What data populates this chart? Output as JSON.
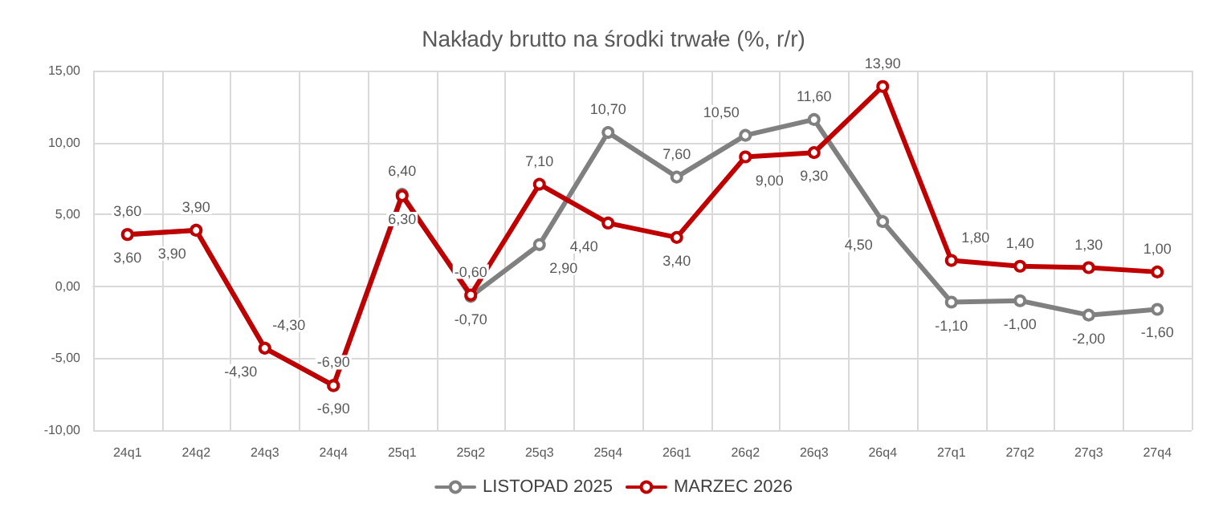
{
  "chart_data": {
    "type": "line",
    "title": "Nakłady brutto na środki trwałe (%, r/r)",
    "categories": [
      "24q1",
      "24q2",
      "24q3",
      "24q4",
      "25q1",
      "25q2",
      "25q3",
      "25q4",
      "26q1",
      "26q2",
      "26q3",
      "26q4",
      "27q1",
      "27q2",
      "27q3",
      "27q4"
    ],
    "series": [
      {
        "name": "LISTOPAD 2025",
        "color": "#808080",
        "values": [
          3.6,
          3.9,
          -4.3,
          -6.9,
          6.4,
          -0.7,
          2.9,
          10.7,
          7.6,
          10.5,
          11.6,
          4.5,
          -1.1,
          -1.0,
          -2.0,
          -1.6
        ],
        "value_labels": [
          "3,60",
          "3,90",
          "-4,30",
          "-6,90",
          "6,40",
          "-0,70",
          "2,90",
          "10,70",
          "7,60",
          "10,50",
          "11,60",
          "4,50",
          "-1,10",
          "-1,00",
          "-2,00",
          "-1,60"
        ]
      },
      {
        "name": "MARZEC 2026",
        "color": "#c00000",
        "values": [
          3.6,
          3.9,
          -4.3,
          -6.9,
          6.3,
          -0.6,
          7.1,
          4.4,
          3.4,
          9.0,
          9.3,
          13.9,
          1.8,
          1.4,
          1.3,
          1.0
        ],
        "value_labels": [
          "3,60",
          "3,90",
          "-4,30",
          "-6,90",
          "6,30",
          "-0,60",
          "7,10",
          "4,40",
          "3,40",
          "9,00",
          "9,30",
          "13,90",
          "1,80",
          "1,40",
          "1,30",
          "1,00"
        ]
      }
    ],
    "ylim": [
      -10,
      15
    ],
    "yticks": [
      {
        "value": -10,
        "label": "-10,00"
      },
      {
        "value": -5,
        "label": "-5,00"
      },
      {
        "value": 0,
        "label": "0,00"
      },
      {
        "value": 5,
        "label": "5,00"
      },
      {
        "value": 10,
        "label": "10,00"
      },
      {
        "value": 15,
        "label": "15,00"
      }
    ],
    "grid": true,
    "legend": "bottom",
    "marker": "circle",
    "line_style": "solid"
  }
}
